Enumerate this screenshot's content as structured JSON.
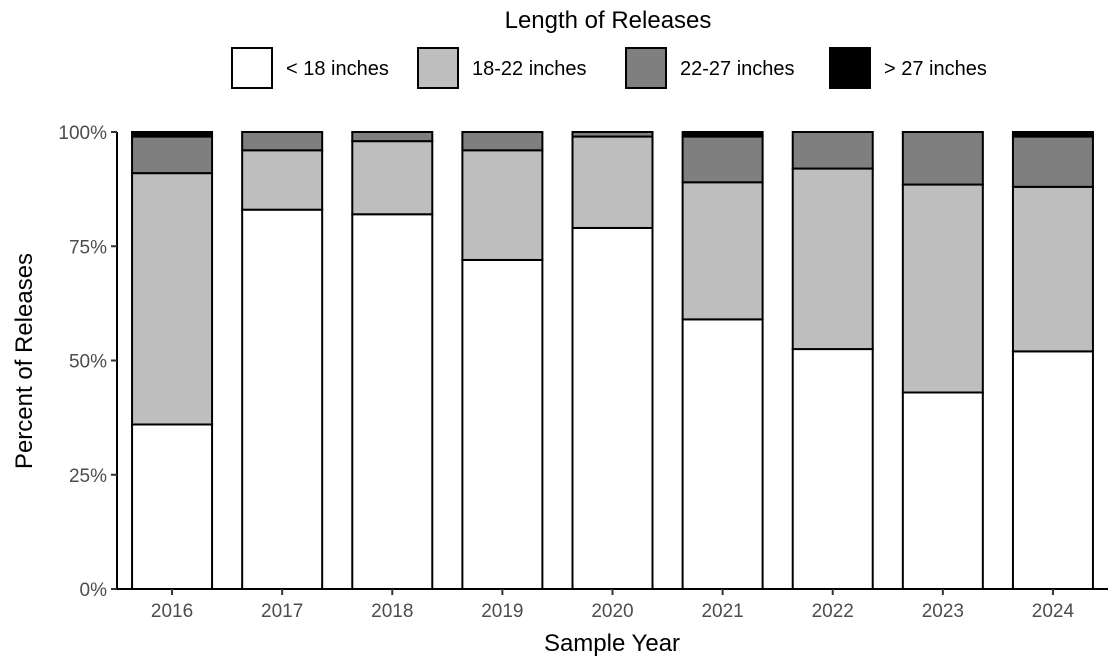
{
  "chart_data": {
    "type": "bar",
    "stacked": true,
    "legend_title": "Length of Releases",
    "legend_position": "top",
    "xlabel": "Sample Year",
    "ylabel": "Percent of Releases",
    "ylim": [
      0,
      1
    ],
    "yticks": [
      0,
      0.25,
      0.5,
      0.75,
      1.0
    ],
    "ytick_labels": [
      "0%",
      "25%",
      "50%",
      "75%",
      "100%"
    ],
    "grid": false,
    "categories": [
      "2016",
      "2017",
      "2018",
      "2019",
      "2020",
      "2021",
      "2022",
      "2023",
      "2024"
    ],
    "series": [
      {
        "name": "< 18 inches",
        "color": "#ffffff",
        "values": [
          0.36,
          0.83,
          0.82,
          0.72,
          0.79,
          0.59,
          0.525,
          0.43,
          0.52
        ]
      },
      {
        "name": "18-22 inches",
        "color": "#bebebe",
        "values": [
          0.55,
          0.13,
          0.16,
          0.24,
          0.2,
          0.3,
          0.395,
          0.455,
          0.36
        ]
      },
      {
        "name": "22-27 inches",
        "color": "#7f7f7f",
        "values": [
          0.08,
          0.04,
          0.02,
          0.04,
          0.01,
          0.1,
          0.08,
          0.115,
          0.11
        ]
      },
      {
        "name": "> 27 inches",
        "color": "#000000",
        "values": [
          0.01,
          0.0,
          0.0,
          0.0,
          0.0,
          0.01,
          0.0,
          0.0,
          0.01
        ]
      }
    ]
  }
}
